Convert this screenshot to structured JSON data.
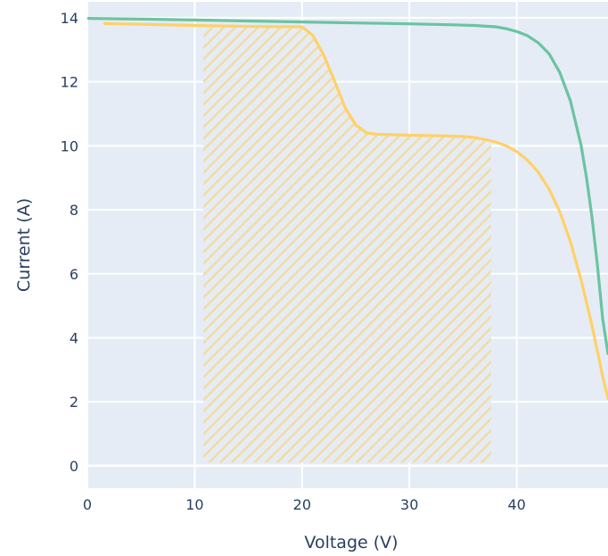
{
  "chart_data": {
    "type": "line",
    "title": "",
    "xlabel": "Voltage (V)",
    "ylabel": "Current (A)",
    "xlim": [
      0,
      48.5
    ],
    "ylim": [
      -0.7,
      14.5
    ],
    "x_ticks": [
      0,
      10,
      20,
      30,
      40
    ],
    "y_ticks": [
      0,
      2,
      4,
      6,
      8,
      10,
      12,
      14
    ],
    "grid": true,
    "legend": "none",
    "colors": {
      "plot_bg": "#e5ecf6",
      "grid": "#ffffff",
      "series_green": "#6cc3a0",
      "series_yellow": "#ffd166",
      "hatch": "#f2dca0",
      "axis_text": "#2a3f5f"
    },
    "shaded_region": {
      "x": [
        10.8,
        37.6
      ],
      "y": [
        0.1,
        13.7
      ],
      "top_edge": [
        [
          10.8,
          13.72
        ],
        [
          20.0,
          13.7
        ],
        [
          21.0,
          13.4
        ],
        [
          22.0,
          12.8
        ],
        [
          23.0,
          12.0
        ],
        [
          24.0,
          11.2
        ],
        [
          25.0,
          10.75
        ],
        [
          26.0,
          10.45
        ],
        [
          27.0,
          10.36
        ],
        [
          30.0,
          10.33
        ],
        [
          33.0,
          10.31
        ],
        [
          35.0,
          10.28
        ],
        [
          36.5,
          10.2
        ],
        [
          37.6,
          10.1
        ]
      ]
    },
    "series": [
      {
        "color": "#6cc3a0",
        "x": [
          0,
          5,
          10,
          15,
          20,
          25,
          30,
          34,
          36,
          38,
          39,
          40,
          41,
          42,
          43,
          44,
          45,
          46,
          46.5,
          47,
          47.5,
          48,
          48.5
        ],
        "y": [
          13.98,
          13.96,
          13.93,
          13.9,
          13.87,
          13.84,
          13.81,
          13.78,
          13.76,
          13.72,
          13.66,
          13.57,
          13.44,
          13.22,
          12.88,
          12.3,
          11.4,
          10.0,
          9.0,
          7.8,
          6.3,
          4.6,
          3.5
        ]
      },
      {
        "color": "#ffd166",
        "x": [
          1.6,
          5,
          10,
          15,
          20,
          21,
          22,
          23,
          24,
          25,
          26,
          27,
          30,
          33,
          35,
          36,
          37,
          38,
          39,
          40,
          41,
          42,
          43,
          44,
          45,
          46,
          47,
          48,
          48.5
        ],
        "y": [
          13.82,
          13.8,
          13.76,
          13.73,
          13.72,
          13.45,
          12.85,
          12.05,
          11.2,
          10.65,
          10.4,
          10.36,
          10.33,
          10.31,
          10.29,
          10.26,
          10.2,
          10.12,
          10.0,
          9.82,
          9.55,
          9.18,
          8.65,
          7.95,
          7.0,
          5.8,
          4.4,
          2.8,
          2.1
        ]
      }
    ]
  }
}
